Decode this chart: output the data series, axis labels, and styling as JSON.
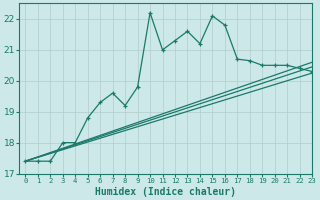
{
  "xlabel": "Humidex (Indice chaleur)",
  "bg_color": "#cce8e8",
  "line_color": "#1a7a6a",
  "grid_color": "#b0cccc",
  "xlim": [
    -0.5,
    23
  ],
  "ylim": [
    17,
    22.5
  ],
  "yticks": [
    17,
    18,
    19,
    20,
    21,
    22
  ],
  "xticks": [
    0,
    1,
    2,
    3,
    4,
    5,
    6,
    7,
    8,
    9,
    10,
    11,
    12,
    13,
    14,
    15,
    16,
    17,
    18,
    19,
    20,
    21,
    22,
    23
  ],
  "main_x": [
    0,
    1,
    2,
    3,
    4,
    5,
    6,
    7,
    8,
    9,
    10,
    11,
    12,
    13,
    14,
    15,
    16,
    17,
    18,
    19,
    20,
    21,
    22,
    23
  ],
  "main_y": [
    17.4,
    17.4,
    17.4,
    18.0,
    18.0,
    18.8,
    19.3,
    19.6,
    19.2,
    19.8,
    22.2,
    21.0,
    21.3,
    21.6,
    21.2,
    22.1,
    21.8,
    20.7,
    20.65,
    20.5,
    20.5,
    20.5,
    20.4,
    20.3
  ],
  "smooth_lines": [
    {
      "x": [
        0,
        23
      ],
      "y": [
        17.4,
        20.25
      ]
    },
    {
      "x": [
        0,
        23
      ],
      "y": [
        17.4,
        20.45
      ]
    },
    {
      "x": [
        0,
        23
      ],
      "y": [
        17.4,
        20.6
      ]
    }
  ]
}
